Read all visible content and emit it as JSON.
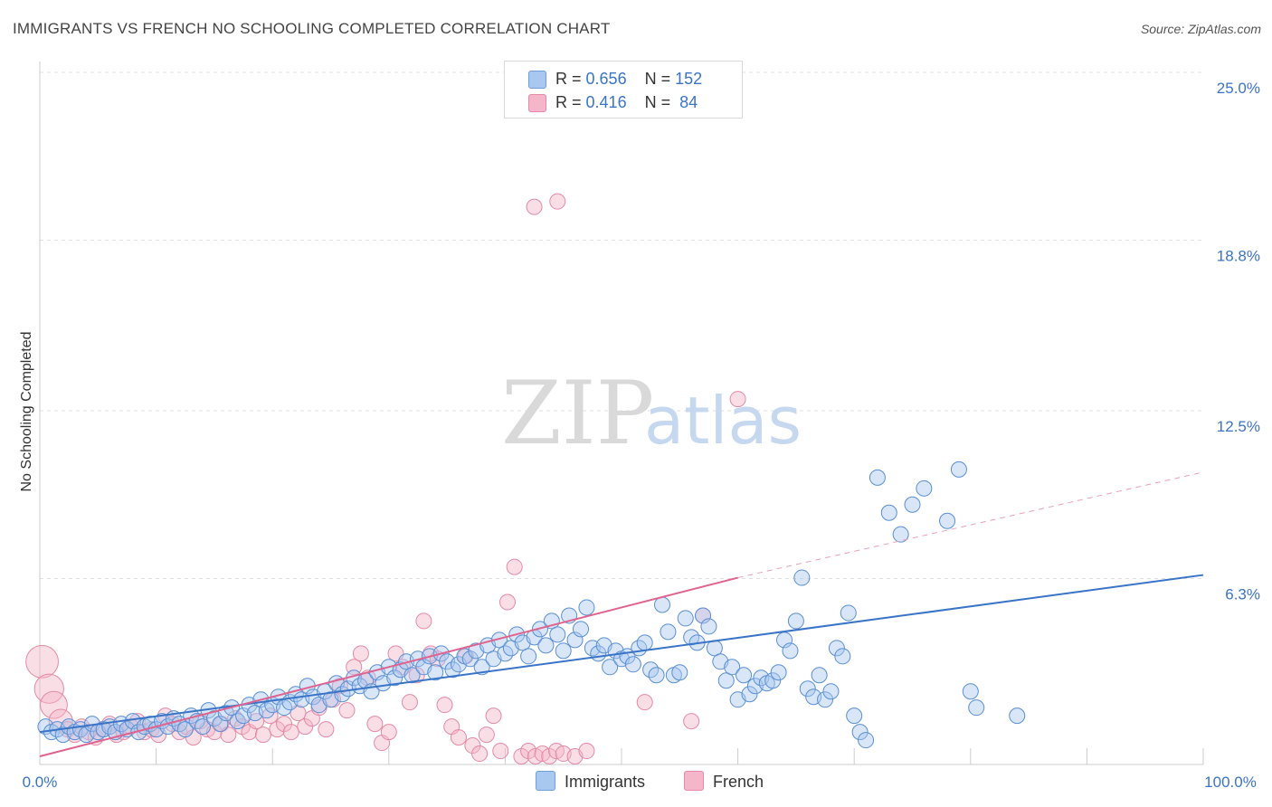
{
  "header": {
    "title": "IMMIGRANTS VS FRENCH NO SCHOOLING COMPLETED CORRELATION CHART",
    "source": "Source: ZipAtlas.com"
  },
  "legend": {
    "rows": [
      {
        "r_label": "R =",
        "r_value": "0.656",
        "n_label": "N =",
        "n_value": "152",
        "color": "#a8c8f0"
      },
      {
        "r_label": "R =",
        "r_value": "0.416",
        "n_label": "N =",
        "n_value": "84",
        "color": "#f4b6c8"
      }
    ]
  },
  "bottom_legend": [
    {
      "label": "Immigrants",
      "color": "#a8c8f0"
    },
    {
      "label": "French",
      "color": "#f4b6c8"
    }
  ],
  "watermark": {
    "zip": "ZIP",
    "atlas": "atlas"
  },
  "colors": {
    "blue": "#3a74c7",
    "blue_fill": "#a8c8f0",
    "pink": "#e0628e",
    "pink_fill": "#f4b6c8"
  },
  "chart_data": {
    "type": "scatter",
    "title": "IMMIGRANTS VS FRENCH NO SCHOOLING COMPLETED CORRELATION CHART",
    "xlabel": "",
    "ylabel": "No Schooling Completed",
    "xlim": [
      0,
      100
    ],
    "ylim": [
      0,
      25
    ],
    "x_tick_labels": [
      "0.0%",
      "100.0%"
    ],
    "y_ticks": [
      6.3,
      12.5,
      18.8,
      25.0
    ],
    "y_tick_labels": [
      "6.3%",
      "12.5%",
      "18.8%",
      "25.0%"
    ],
    "grid": true,
    "legend_position": "top-center",
    "series": [
      {
        "name": "Immigrants",
        "color": "#3a74c7",
        "trend": {
          "x": [
            0,
            100
          ],
          "y": [
            1.2,
            7.0
          ],
          "style": "solid"
        },
        "points": [
          [
            0.5,
            1.4
          ],
          [
            1.0,
            1.2
          ],
          [
            1.5,
            1.3
          ],
          [
            2.0,
            1.1
          ],
          [
            2.5,
            1.4
          ],
          [
            3.0,
            1.2
          ],
          [
            3.5,
            1.3
          ],
          [
            4.0,
            1.1
          ],
          [
            4.5,
            1.5
          ],
          [
            5.0,
            1.2
          ],
          [
            5.5,
            1.3
          ],
          [
            6.0,
            1.4
          ],
          [
            6.5,
            1.2
          ],
          [
            7.0,
            1.5
          ],
          [
            7.5,
            1.3
          ],
          [
            8.0,
            1.6
          ],
          [
            8.5,
            1.2
          ],
          [
            9.0,
            1.4
          ],
          [
            9.5,
            1.5
          ],
          [
            10.0,
            1.3
          ],
          [
            10.5,
            1.6
          ],
          [
            11.0,
            1.4
          ],
          [
            11.5,
            1.7
          ],
          [
            12.0,
            1.5
          ],
          [
            12.5,
            1.3
          ],
          [
            13.0,
            1.8
          ],
          [
            13.5,
            1.6
          ],
          [
            14.0,
            1.4
          ],
          [
            14.5,
            2.0
          ],
          [
            15.0,
            1.7
          ],
          [
            15.5,
            1.5
          ],
          [
            16.0,
            1.9
          ],
          [
            16.5,
            2.1
          ],
          [
            17.0,
            1.6
          ],
          [
            17.5,
            1.8
          ],
          [
            18.0,
            2.2
          ],
          [
            18.5,
            1.9
          ],
          [
            19.0,
            2.4
          ],
          [
            19.5,
            2.0
          ],
          [
            20.0,
            2.2
          ],
          [
            20.5,
            2.5
          ],
          [
            21.0,
            2.1
          ],
          [
            21.5,
            2.3
          ],
          [
            22.0,
            2.6
          ],
          [
            22.5,
            2.4
          ],
          [
            23.0,
            2.9
          ],
          [
            23.5,
            2.5
          ],
          [
            24.0,
            2.2
          ],
          [
            24.5,
            2.7
          ],
          [
            25.0,
            2.4
          ],
          [
            25.5,
            3.0
          ],
          [
            26.0,
            2.6
          ],
          [
            26.5,
            2.8
          ],
          [
            27.0,
            3.2
          ],
          [
            27.5,
            2.9
          ],
          [
            28.0,
            3.1
          ],
          [
            28.5,
            2.7
          ],
          [
            29.0,
            3.4
          ],
          [
            29.5,
            3.0
          ],
          [
            30.0,
            3.6
          ],
          [
            30.5,
            3.2
          ],
          [
            31.0,
            3.5
          ],
          [
            31.5,
            3.8
          ],
          [
            32.0,
            3.3
          ],
          [
            32.5,
            3.9
          ],
          [
            33.0,
            3.6
          ],
          [
            33.5,
            4.0
          ],
          [
            34.0,
            3.4
          ],
          [
            34.5,
            4.1
          ],
          [
            35.0,
            3.8
          ],
          [
            35.5,
            3.5
          ],
          [
            36.0,
            3.7
          ],
          [
            36.5,
            4.0
          ],
          [
            37.0,
            3.9
          ],
          [
            37.5,
            4.2
          ],
          [
            38.0,
            3.6
          ],
          [
            38.5,
            4.4
          ],
          [
            39.0,
            3.9
          ],
          [
            39.5,
            4.6
          ],
          [
            40.0,
            4.1
          ],
          [
            40.5,
            4.3
          ],
          [
            41.0,
            4.8
          ],
          [
            41.5,
            4.5
          ],
          [
            42.0,
            4.0
          ],
          [
            42.5,
            4.7
          ],
          [
            43.0,
            5.0
          ],
          [
            43.5,
            4.4
          ],
          [
            44.0,
            5.3
          ],
          [
            44.5,
            4.8
          ],
          [
            45.0,
            4.2
          ],
          [
            45.5,
            5.5
          ],
          [
            46.0,
            4.6
          ],
          [
            46.5,
            5.0
          ],
          [
            47.0,
            5.8
          ],
          [
            47.5,
            4.3
          ],
          [
            48.0,
            4.1
          ],
          [
            48.5,
            4.4
          ],
          [
            49.0,
            3.6
          ],
          [
            49.5,
            4.2
          ],
          [
            50.0,
            3.9
          ],
          [
            50.5,
            4.0
          ],
          [
            51.0,
            3.7
          ],
          [
            51.5,
            4.3
          ],
          [
            52.0,
            4.5
          ],
          [
            52.5,
            3.5
          ],
          [
            53.0,
            3.3
          ],
          [
            53.5,
            5.9
          ],
          [
            54.0,
            4.9
          ],
          [
            54.5,
            3.3
          ],
          [
            55.0,
            3.4
          ],
          [
            55.5,
            5.4
          ],
          [
            56.0,
            4.7
          ],
          [
            56.5,
            4.5
          ],
          [
            57.0,
            5.5
          ],
          [
            57.5,
            5.1
          ],
          [
            58.0,
            4.3
          ],
          [
            58.5,
            3.8
          ],
          [
            59.0,
            3.1
          ],
          [
            59.5,
            3.6
          ],
          [
            60.0,
            2.4
          ],
          [
            60.5,
            3.3
          ],
          [
            61.0,
            2.6
          ],
          [
            61.5,
            2.9
          ],
          [
            62.0,
            3.2
          ],
          [
            62.5,
            3.0
          ],
          [
            63.0,
            3.1
          ],
          [
            63.5,
            3.4
          ],
          [
            64.0,
            4.6
          ],
          [
            64.5,
            4.2
          ],
          [
            65.0,
            5.3
          ],
          [
            65.5,
            6.9
          ],
          [
            66.0,
            2.8
          ],
          [
            66.5,
            2.5
          ],
          [
            67.0,
            3.3
          ],
          [
            67.5,
            2.4
          ],
          [
            68.0,
            2.7
          ],
          [
            68.5,
            4.3
          ],
          [
            69.0,
            4.0
          ],
          [
            69.5,
            5.6
          ],
          [
            70.0,
            1.8
          ],
          [
            70.5,
            1.2
          ],
          [
            71.0,
            0.9
          ],
          [
            72.0,
            10.6
          ],
          [
            73.0,
            9.3
          ],
          [
            74.0,
            8.5
          ],
          [
            75.0,
            9.6
          ],
          [
            76.0,
            10.2
          ],
          [
            78.0,
            9.0
          ],
          [
            79.0,
            10.9
          ],
          [
            80.0,
            2.7
          ],
          [
            80.5,
            2.1
          ],
          [
            84.0,
            1.8
          ]
        ]
      },
      {
        "name": "French",
        "color": "#e0628e",
        "trend": {
          "x": [
            0,
            60
          ],
          "y": [
            0.3,
            6.9
          ],
          "style": "solid"
        },
        "trend_ext": {
          "x": [
            60,
            100
          ],
          "y": [
            6.9,
            10.8
          ],
          "style": "dashed"
        },
        "points": [
          [
            0.2,
            3.8
          ],
          [
            0.8,
            2.8
          ],
          [
            1.2,
            2.2
          ],
          [
            1.8,
            1.6
          ],
          [
            2.4,
            1.3
          ],
          [
            3.0,
            1.1
          ],
          [
            3.6,
            1.4
          ],
          [
            4.2,
            1.2
          ],
          [
            4.8,
            1.0
          ],
          [
            5.4,
            1.3
          ],
          [
            6.0,
            1.5
          ],
          [
            6.6,
            1.1
          ],
          [
            7.2,
            1.2
          ],
          [
            7.8,
            1.4
          ],
          [
            8.4,
            1.6
          ],
          [
            9.0,
            1.2
          ],
          [
            9.6,
            1.3
          ],
          [
            10.2,
            1.1
          ],
          [
            10.8,
            1.8
          ],
          [
            11.4,
            1.5
          ],
          [
            12.0,
            1.2
          ],
          [
            12.6,
            1.4
          ],
          [
            13.2,
            1.0
          ],
          [
            13.8,
            1.6
          ],
          [
            14.4,
            1.3
          ],
          [
            15.0,
            1.2
          ],
          [
            15.6,
            1.5
          ],
          [
            16.2,
            1.1
          ],
          [
            16.8,
            1.7
          ],
          [
            17.4,
            1.4
          ],
          [
            18.0,
            1.2
          ],
          [
            18.6,
            1.6
          ],
          [
            19.2,
            1.1
          ],
          [
            19.8,
            1.8
          ],
          [
            20.4,
            1.3
          ],
          [
            21.0,
            1.5
          ],
          [
            21.6,
            1.2
          ],
          [
            22.2,
            1.9
          ],
          [
            22.8,
            1.4
          ],
          [
            23.4,
            1.7
          ],
          [
            24.0,
            2.1
          ],
          [
            24.6,
            1.3
          ],
          [
            25.2,
            2.4
          ],
          [
            25.8,
            2.9
          ],
          [
            26.4,
            2.0
          ],
          [
            27.0,
            3.6
          ],
          [
            27.6,
            4.1
          ],
          [
            28.2,
            3.2
          ],
          [
            28.8,
            1.5
          ],
          [
            29.4,
            0.8
          ],
          [
            30.0,
            1.2
          ],
          [
            30.6,
            4.1
          ],
          [
            31.2,
            3.6
          ],
          [
            31.8,
            2.3
          ],
          [
            32.4,
            3.3
          ],
          [
            33.0,
            5.3
          ],
          [
            33.6,
            4.1
          ],
          [
            34.2,
            3.9
          ],
          [
            34.8,
            2.2
          ],
          [
            35.4,
            1.4
          ],
          [
            36.0,
            1.0
          ],
          [
            36.6,
            4.0
          ],
          [
            37.2,
            0.7
          ],
          [
            37.8,
            0.4
          ],
          [
            38.4,
            1.1
          ],
          [
            39.0,
            1.8
          ],
          [
            39.6,
            0.5
          ],
          [
            40.2,
            6.0
          ],
          [
            40.8,
            7.3
          ],
          [
            41.4,
            0.3
          ],
          [
            42.0,
            0.5
          ],
          [
            42.6,
            0.3
          ],
          [
            43.2,
            0.4
          ],
          [
            43.8,
            0.3
          ],
          [
            44.4,
            0.5
          ],
          [
            45.0,
            0.4
          ],
          [
            46.0,
            0.3
          ],
          [
            47.0,
            0.5
          ],
          [
            52.0,
            2.3
          ],
          [
            56.0,
            1.6
          ],
          [
            57.0,
            5.5
          ],
          [
            60.0,
            13.5
          ],
          [
            42.5,
            20.6
          ],
          [
            44.5,
            20.8
          ]
        ]
      }
    ]
  }
}
